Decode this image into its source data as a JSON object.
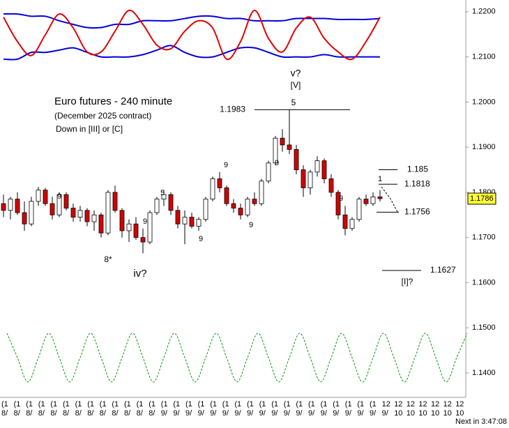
{
  "chart_data": {
    "type": "candlestick",
    "title": "Euro futures - 240 minute",
    "subtitle": "(December 2025 contract)",
    "note": "Down in [III] or [C]",
    "colors": {
      "up": "#ffffff",
      "down": "#d40000",
      "outline": "#000000",
      "band": "#0000dd",
      "oscillator": "#e00000",
      "cycle": "#009900"
    },
    "ylim": [
      1.1346,
      1.2226
    ],
    "yticks": [
      {
        "value": 1.22,
        "label": "1.2200"
      },
      {
        "value": 1.21,
        "label": "1.2100"
      },
      {
        "value": 1.2,
        "label": "1.2000"
      },
      {
        "value": 1.19,
        "label": "1.1900"
      },
      {
        "value": 1.18,
        "label": "1.1800"
      },
      {
        "value": 1.17,
        "label": "1.1700"
      },
      {
        "value": 1.16,
        "label": "1.1600"
      },
      {
        "value": 1.15,
        "label": "1.1500"
      },
      {
        "value": 1.14,
        "label": "1.1400"
      }
    ],
    "ohlc": [
      [
        1.1775,
        1.1795,
        1.1745,
        1.176
      ],
      [
        1.176,
        1.179,
        1.174,
        1.1785
      ],
      [
        1.1785,
        1.18,
        1.175,
        1.1755
      ],
      [
        1.1755,
        1.178,
        1.1715,
        1.173
      ],
      [
        1.173,
        1.179,
        1.1725,
        1.178
      ],
      [
        1.178,
        1.1812,
        1.177,
        1.1805
      ],
      [
        1.1805,
        1.181,
        1.177,
        1.1775
      ],
      [
        1.1775,
        1.179,
        1.174,
        1.175
      ],
      [
        1.175,
        1.18,
        1.1745,
        1.1795
      ],
      [
        1.1795,
        1.18,
        1.176,
        1.1765
      ],
      [
        1.1765,
        1.1775,
        1.1735,
        1.1745
      ],
      [
        1.1745,
        1.177,
        1.1735,
        1.176
      ],
      [
        1.176,
        1.1765,
        1.1725,
        1.1735
      ],
      [
        1.1735,
        1.176,
        1.1715,
        1.175
      ],
      [
        1.175,
        1.1755,
        1.17,
        1.171
      ],
      [
        1.171,
        1.1805,
        1.1705,
        1.18
      ],
      [
        1.18,
        1.1815,
        1.1755,
        1.176
      ],
      [
        1.176,
        1.1765,
        1.17,
        1.1715
      ],
      [
        1.1715,
        1.174,
        1.169,
        1.173
      ],
      [
        1.173,
        1.1745,
        1.1695,
        1.17
      ],
      [
        1.17,
        1.172,
        1.1665,
        1.169
      ],
      [
        1.169,
        1.176,
        1.1685,
        1.1755
      ],
      [
        1.1755,
        1.179,
        1.175,
        1.1785
      ],
      [
        1.1785,
        1.1805,
        1.177,
        1.1795
      ],
      [
        1.1795,
        1.18,
        1.175,
        1.176
      ],
      [
        1.176,
        1.177,
        1.172,
        1.173
      ],
      [
        1.173,
        1.176,
        1.1685,
        1.1745
      ],
      [
        1.1745,
        1.1755,
        1.172,
        1.1725
      ],
      [
        1.1725,
        1.1745,
        1.1715,
        1.174
      ],
      [
        1.174,
        1.179,
        1.1735,
        1.1785
      ],
      [
        1.1785,
        1.1835,
        1.178,
        1.183
      ],
      [
        1.183,
        1.1845,
        1.18,
        1.181
      ],
      [
        1.181,
        1.1815,
        1.177,
        1.1775
      ],
      [
        1.1775,
        1.1785,
        1.1755,
        1.1765
      ],
      [
        1.1765,
        1.1775,
        1.174,
        1.175
      ],
      [
        1.175,
        1.179,
        1.1745,
        1.1785
      ],
      [
        1.1785,
        1.18,
        1.177,
        1.1775
      ],
      [
        1.1775,
        1.183,
        1.177,
        1.1825
      ],
      [
        1.1825,
        1.187,
        1.182,
        1.1865
      ],
      [
        1.1865,
        1.1925,
        1.186,
        1.192
      ],
      [
        1.192,
        1.194,
        1.189,
        1.1905
      ],
      [
        1.1905,
        1.1983,
        1.1885,
        1.1895
      ],
      [
        1.1895,
        1.1905,
        1.184,
        1.185
      ],
      [
        1.185,
        1.186,
        1.179,
        1.181
      ],
      [
        1.181,
        1.185,
        1.1795,
        1.1845
      ],
      [
        1.1845,
        1.188,
        1.1835,
        1.187
      ],
      [
        1.187,
        1.1875,
        1.182,
        1.183
      ],
      [
        1.183,
        1.184,
        1.179,
        1.18
      ],
      [
        1.18,
        1.1805,
        1.174,
        1.175
      ],
      [
        1.175,
        1.177,
        1.1705,
        1.172
      ],
      [
        1.172,
        1.1745,
        1.1715,
        1.174
      ],
      [
        1.174,
        1.179,
        1.1735,
        1.1785
      ],
      [
        1.1785,
        1.1795,
        1.177,
        1.1775
      ],
      [
        1.1775,
        1.18,
        1.177,
        1.179
      ],
      [
        1.179,
        1.1805,
        1.178,
        1.1786
      ]
    ],
    "last_price": 1.1786,
    "levels": [
      1.1983,
      1.185,
      1.1818,
      1.1756,
      1.1627
    ],
    "wave_labels": [
      "v?",
      "[V]",
      "5",
      "iv?",
      "8*",
      "5",
      "9",
      "9",
      "9",
      "9",
      "9",
      "9",
      "9",
      "1",
      "[I]?",
      "5"
    ],
    "band_upper": [
      1.2195,
      1.2195,
      1.219,
      1.219,
      1.218,
      1.2172,
      1.2165,
      1.2165,
      1.2172,
      1.2172,
      1.218,
      1.218,
      1.218,
      1.2185,
      1.219,
      1.219,
      1.2185,
      1.2185,
      1.218,
      1.218,
      1.218,
      1.2185,
      1.2185,
      1.2185,
      1.2183,
      1.2183,
      1.2183,
      1.2185
    ],
    "band_lower": [
      1.2095,
      1.2095,
      1.211,
      1.211,
      1.2115,
      1.212,
      1.211,
      1.21,
      1.21,
      1.21,
      1.2105,
      1.2115,
      1.2125,
      1.211,
      1.21,
      1.21,
      1.211,
      1.212,
      1.212,
      1.211,
      1.21,
      1.21,
      1.21,
      1.2105,
      1.21,
      1.21,
      1.21,
      1.21
    ],
    "oscillator": [
      1.2188,
      1.2134,
      1.2103,
      1.2149,
      1.2195,
      1.2164,
      1.2111,
      1.2111,
      1.2157,
      1.2203,
      1.2172,
      1.2126,
      1.2118,
      1.2157,
      1.218,
      1.2164,
      1.2095,
      1.2134,
      1.2203,
      1.2141,
      1.2111,
      1.2164,
      1.2188,
      1.2141,
      1.2111,
      1.2095,
      1.2134,
      1.2188
    ],
    "cycle": [
      1.1488,
      1.1434,
      1.138,
      1.1434,
      1.1488,
      1.1434,
      1.138,
      1.1434,
      1.1488,
      1.1434,
      1.138,
      1.1434,
      1.1488,
      1.1434,
      1.138,
      1.1434,
      1.1488,
      1.1434,
      1.138,
      1.1434,
      1.1488,
      1.1434,
      1.138,
      1.1434,
      1.1488,
      1.1434,
      1.138,
      1.1434,
      1.1488,
      1.1434,
      1.138,
      1.1434,
      1.1488,
      1.1434,
      1.138,
      1.1434,
      1.1488,
      1.1434,
      1.138,
      1.1434,
      1.1488,
      1.1434,
      1.138,
      1.1434,
      1.1488
    ],
    "x_labels_top": [
      "(1",
      "(1",
      "(1",
      "(1",
      "(1",
      "(1",
      "(1",
      "(1",
      "(1",
      "(1",
      "(1",
      "(1",
      "(1",
      "(1",
      "(1",
      "(1",
      "(1",
      "(1",
      "(1",
      "(1",
      "(1",
      "(1",
      "(1",
      "(1",
      "(1",
      "(1",
      "(1",
      "(1",
      "(1",
      "(1",
      "(1",
      "12",
      "12",
      "12",
      "12",
      "12",
      "12",
      "12"
    ],
    "x_labels_bottom": [
      "8/",
      "8/",
      "8/",
      "8/",
      "8/",
      "8/",
      "8/",
      "8/",
      "8/",
      "8/",
      "8/",
      "8/",
      "8/",
      "9/",
      "9/",
      "9/",
      "9/",
      "9/",
      "9/",
      "9/",
      "9/",
      "9/",
      "9/",
      "9/",
      "9/",
      "9/",
      "9/",
      "9/",
      "9/",
      "9/",
      "9/",
      "9/",
      "10",
      "10",
      "10",
      "10",
      "10",
      "10"
    ],
    "next_bar": "Next in 3:47:08"
  }
}
